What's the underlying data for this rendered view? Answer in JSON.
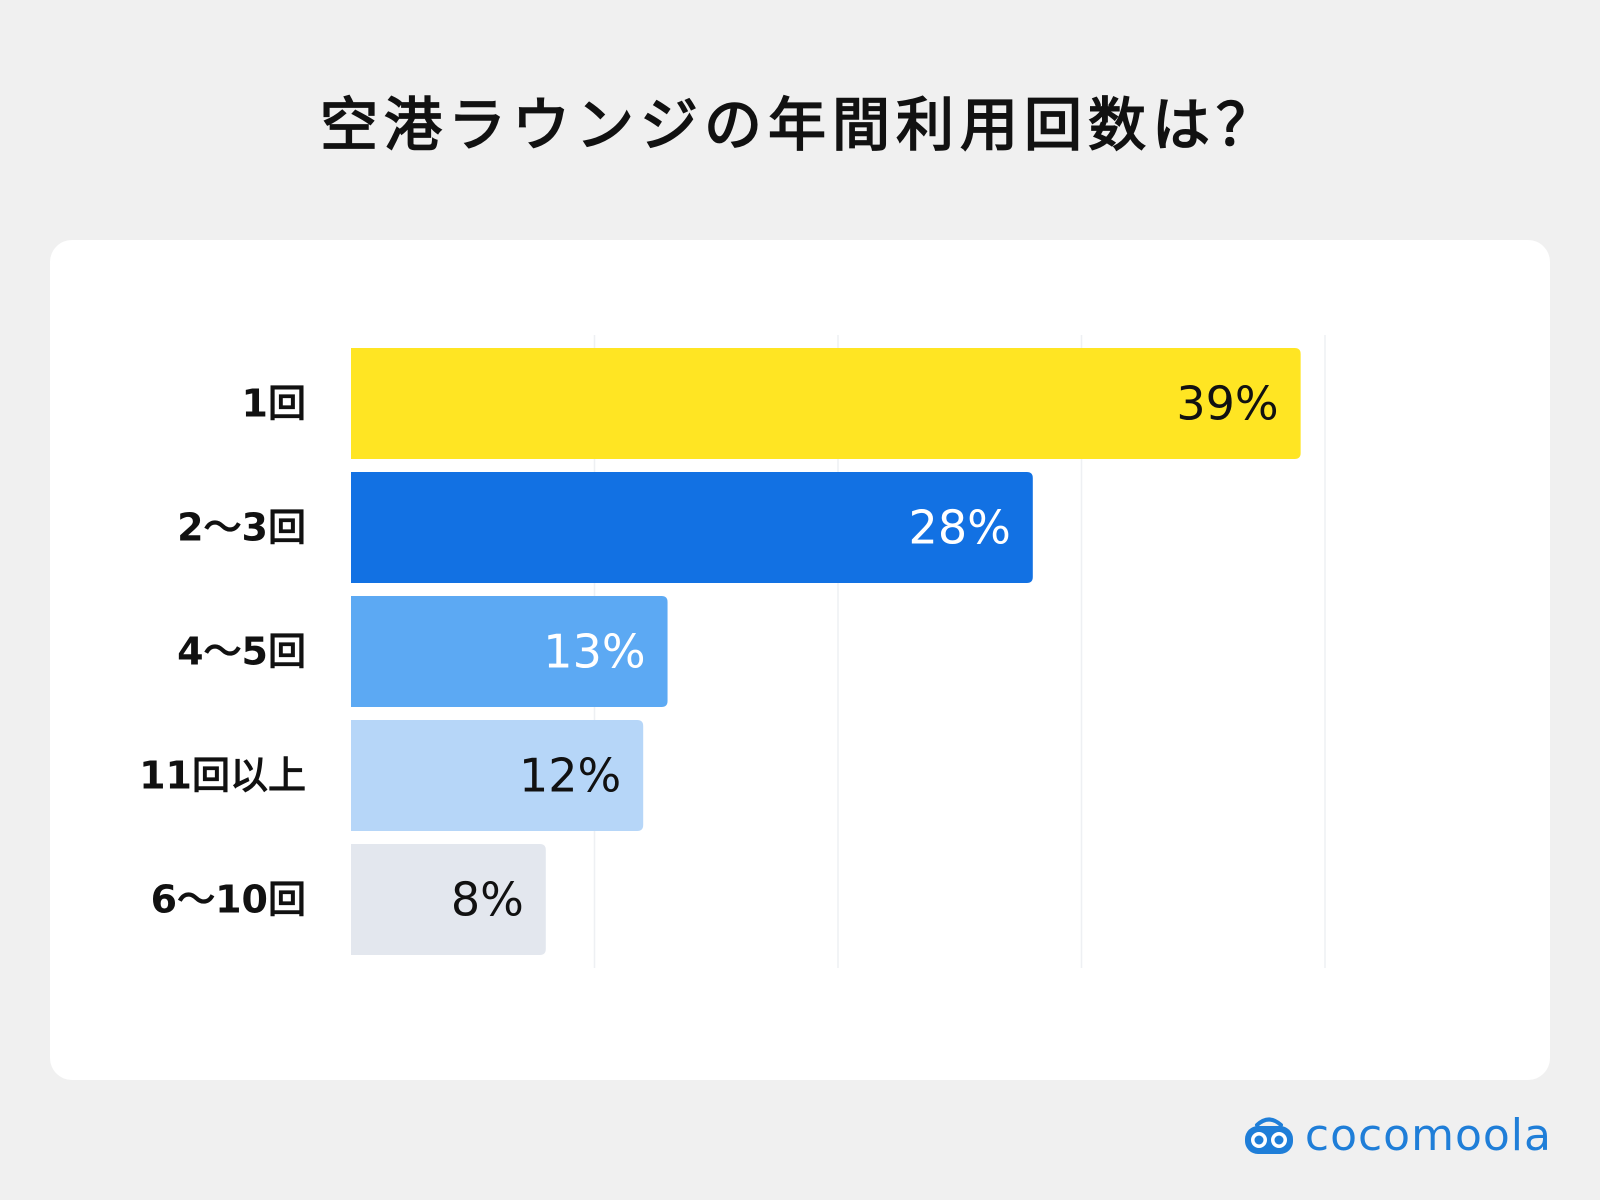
{
  "title": "空港ラウンジの年間利用回数は？",
  "brand": {
    "name": "cocomoola",
    "color": "#1f7ed8"
  },
  "chart_data": {
    "type": "bar",
    "orientation": "horizontal",
    "title": "空港ラウンジの年間利用回数は？",
    "categories": [
      "1回",
      "2〜3回",
      "4〜5回",
      "11回以上",
      "6〜10回"
    ],
    "values": [
      39,
      28,
      13,
      12,
      8
    ],
    "value_labels": [
      "39%",
      "28%",
      "13%",
      "12%",
      "8%"
    ],
    "bar_colors": [
      "#ffe523",
      "#1271e3",
      "#5ca9f3",
      "#b6d6f8",
      "#e3e7ee"
    ],
    "label_colors": [
      "#111111",
      "#ffffff",
      "#ffffff",
      "#111111",
      "#111111"
    ],
    "xlim": [
      0,
      40
    ],
    "grid": true
  }
}
